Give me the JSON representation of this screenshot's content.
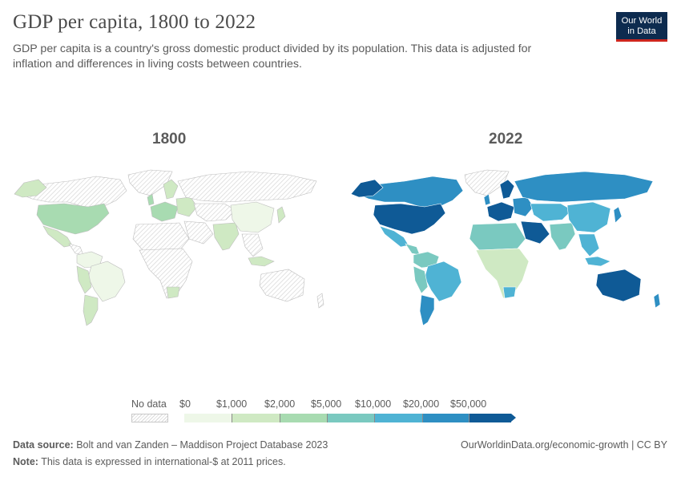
{
  "header": {
    "title": "GDP per capita, 1800 to 2022",
    "subtitle": "GDP per capita is a country's gross domestic product divided by its population. This data is adjusted for inflation and differences in living costs between countries."
  },
  "logo": {
    "line1": "Our World",
    "line2": "in Data"
  },
  "maps": {
    "left_year": "1800",
    "right_year": "2022"
  },
  "legend": {
    "no_data_label": "No data",
    "bins": [
      {
        "label": "$0",
        "color": "#eef7e8"
      },
      {
        "label": "$1,000",
        "color": "#cfe9c3"
      },
      {
        "label": "$2,000",
        "color": "#a8dbb1"
      },
      {
        "label": "$5,000",
        "color": "#7ac9c0"
      },
      {
        "label": "$10,000",
        "color": "#4fb3d4"
      },
      {
        "label": "$20,000",
        "color": "#2e8fc3"
      },
      {
        "label": "$50,000",
        "color": "#0f5a96"
      }
    ]
  },
  "footer": {
    "source_label": "Data source:",
    "source_text": "Bolt and van Zanden – Maddison Project Database 2023",
    "note_label": "Note:",
    "note_text": "This data is expressed in international-$ at 2011 prices.",
    "credit": "OurWorldinData.org/economic-growth | CC BY"
  },
  "colors": {
    "nodata_fill": "#f2f2f2",
    "border": "#bdbdbd",
    "logo_bg": "#0d2b4f",
    "logo_accent": "#ce261e"
  }
}
